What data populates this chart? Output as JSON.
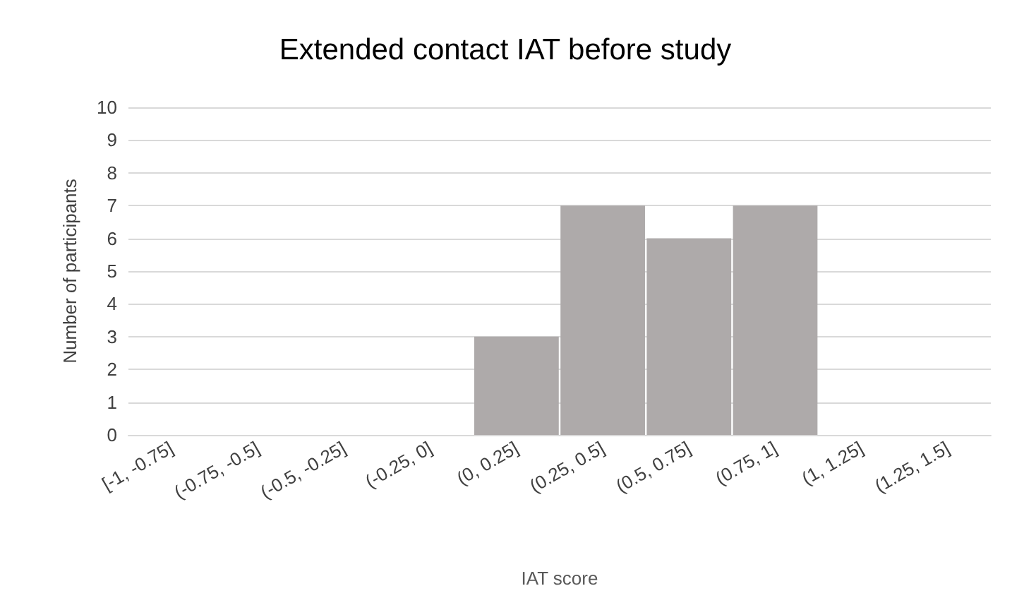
{
  "chart_data": {
    "type": "bar",
    "title": "Extended contact IAT before study",
    "xlabel": "IAT score",
    "ylabel": "Number of participants",
    "categories": [
      "[-1, -0.75]",
      "(-0.75, -0.5]",
      "(-0.5, -0.25]",
      "(-0.25, 0]",
      "(0, 0.25]",
      "(0.25, 0.5]",
      "(0.5, 0.75]",
      "(0.75, 1]",
      "(1, 1.25]",
      "(1.25, 1.5]"
    ],
    "values": [
      0,
      0,
      0,
      0,
      3,
      7,
      6,
      7,
      0,
      0
    ],
    "color": "#aeaaaa",
    "ylim": [
      0,
      10
    ],
    "yticks": [
      0,
      1,
      2,
      3,
      4,
      5,
      6,
      7,
      8,
      9,
      10
    ],
    "grid": "y"
  }
}
